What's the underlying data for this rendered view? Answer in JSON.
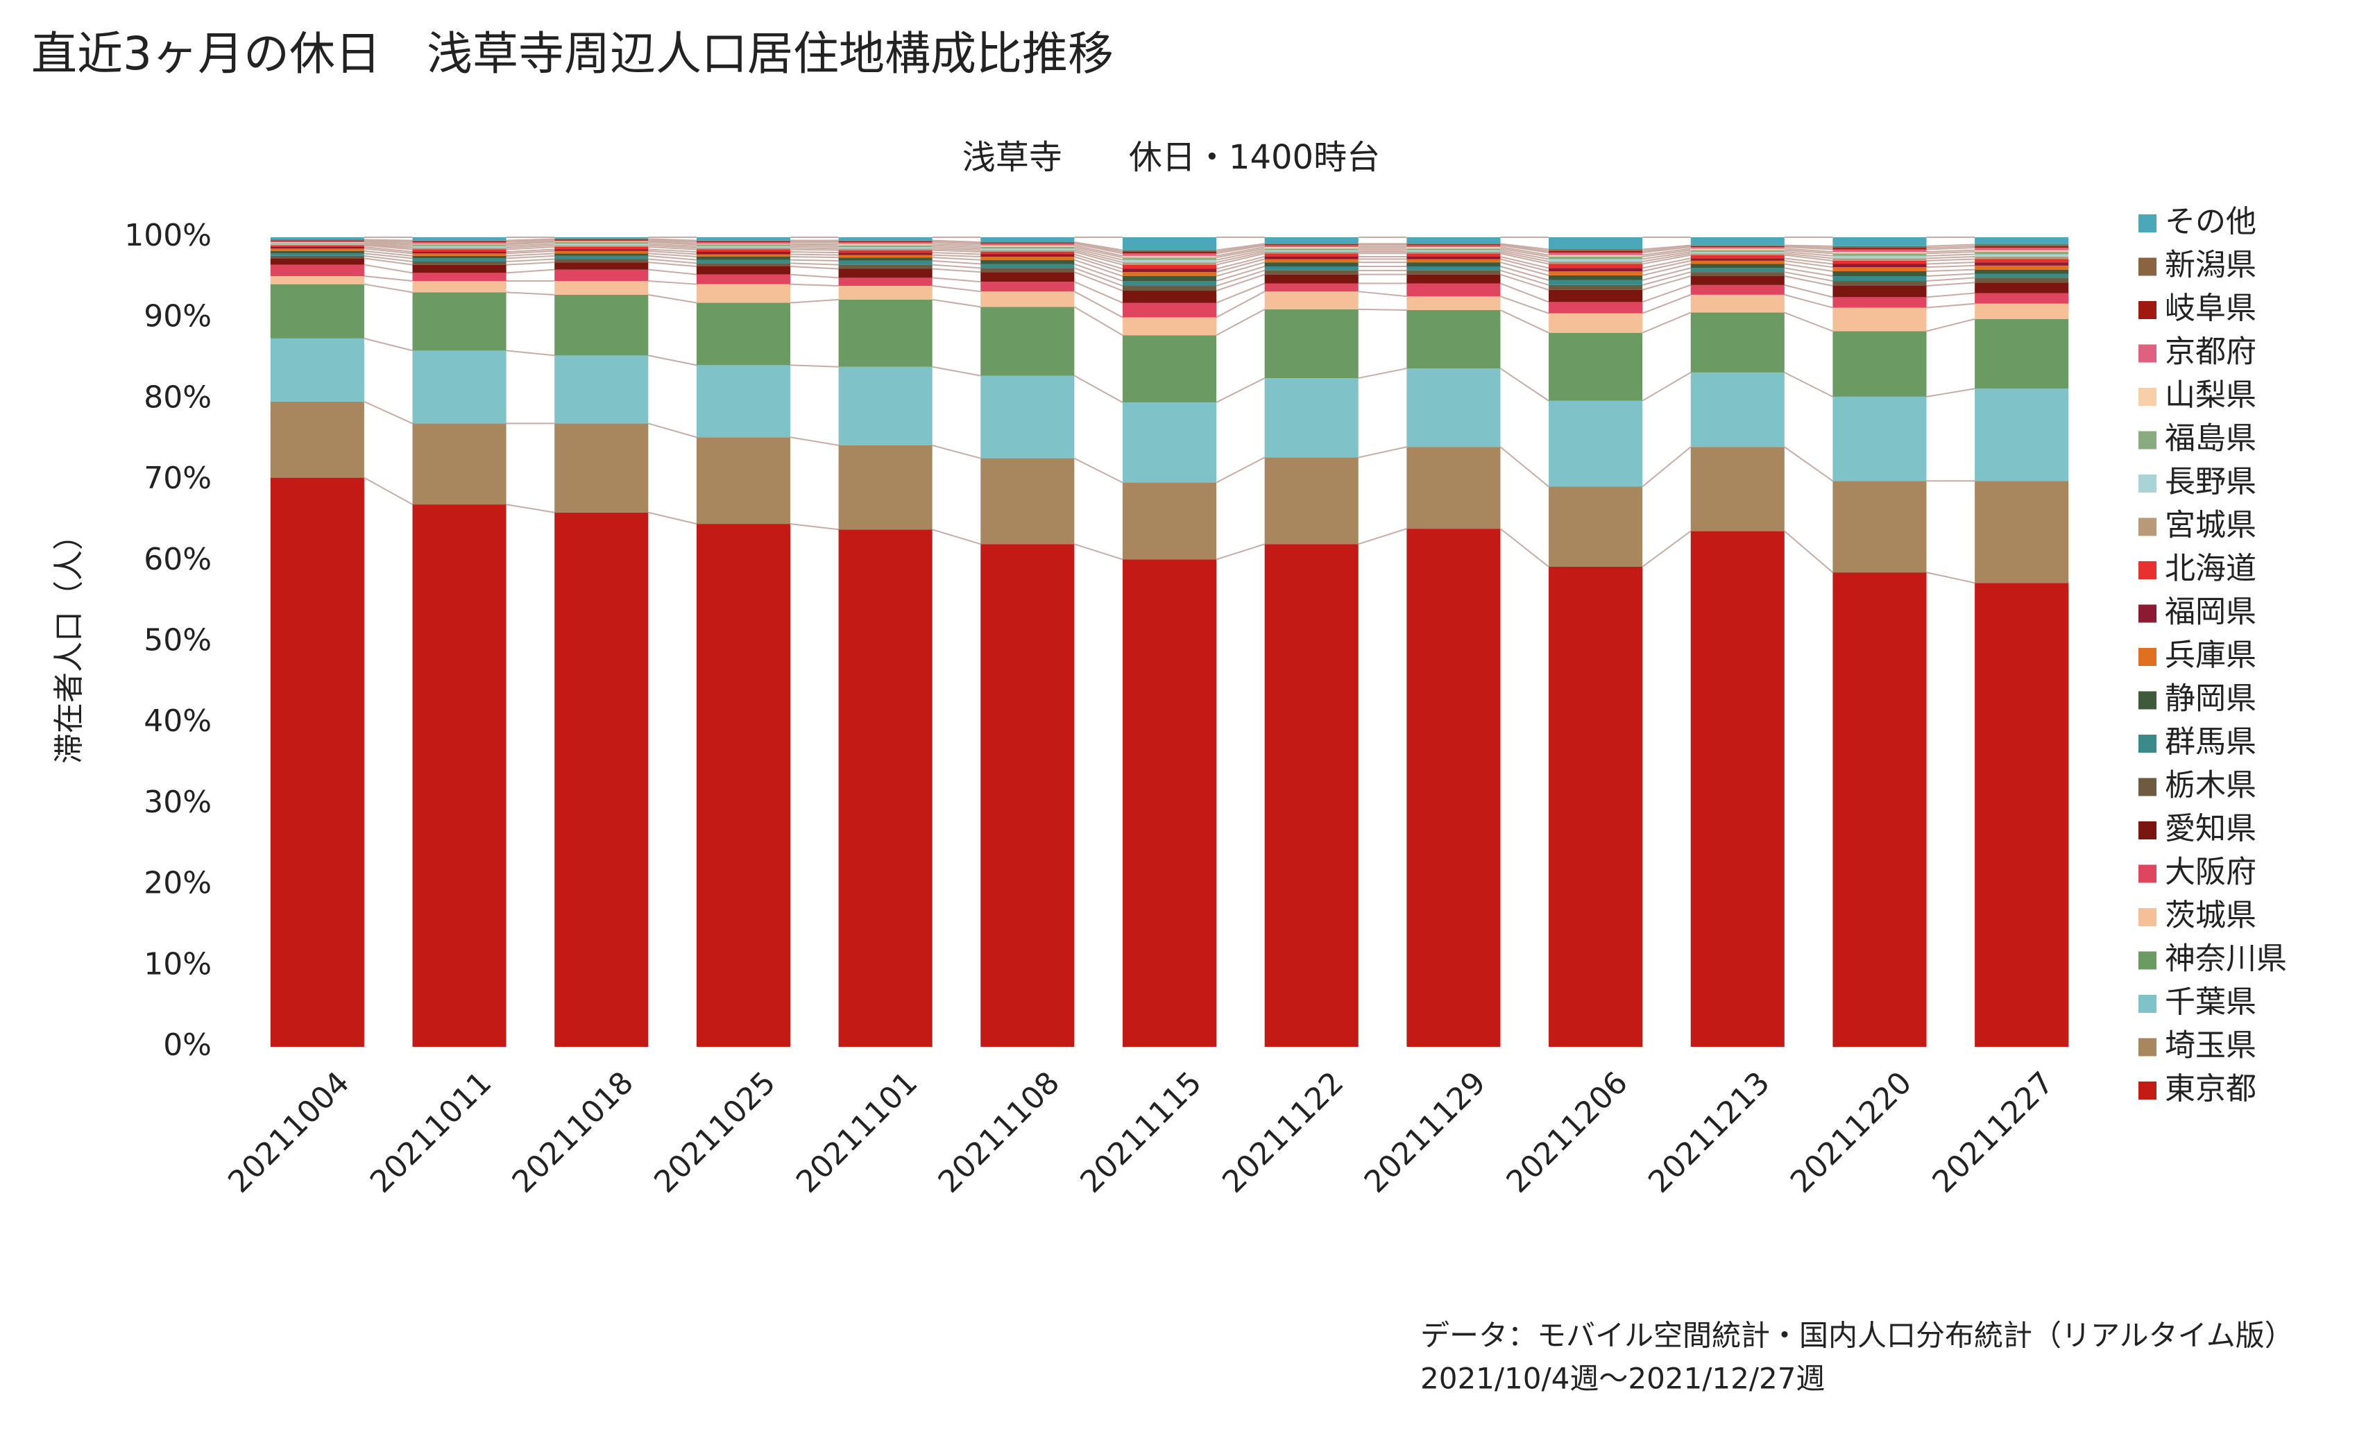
{
  "chart_data": {
    "type": "stacked_bar",
    "title": "直近3ヶ月の休日　浅草寺周辺人口居住地構成比推移",
    "subtitle": "浅草寺　　休日・1400時台",
    "y_label": "滞在者人口（人）",
    "source": [
      "データ：モバイル空間統計・国内人口分布統計（リアルタイム版）",
      "2021/10/4週～2021/12/27週"
    ],
    "categories": [
      "20211004",
      "20211011",
      "20211018",
      "20211025",
      "20211101",
      "20211108",
      "20211115",
      "20211122",
      "20211129",
      "20211206",
      "20211213",
      "20211220",
      "20211227"
    ],
    "ylim": [
      0,
      100
    ],
    "yticks": [
      {
        "value": 0,
        "label": "0%"
      },
      {
        "value": 10,
        "label": "10%"
      },
      {
        "value": 20,
        "label": "20%"
      },
      {
        "value": 30,
        "label": "30%"
      },
      {
        "value": 40,
        "label": "40%"
      },
      {
        "value": 50,
        "label": "50%"
      },
      {
        "value": 60,
        "label": "60%"
      },
      {
        "value": 70,
        "label": "70%"
      },
      {
        "value": 80,
        "label": "80%"
      },
      {
        "value": 90,
        "label": "90%"
      },
      {
        "value": 100,
        "label": "100%"
      }
    ],
    "legend": "right",
    "series": [
      {
        "name": "東京都",
        "color": "#c41a16",
        "values": [
          70.3,
          67.0,
          66.0,
          64.6,
          63.9,
          62.1,
          60.2,
          62.1,
          64.0,
          59.3,
          63.7,
          58.6,
          57.3
        ]
      },
      {
        "name": "埼玉県",
        "color": "#a8875f",
        "values": [
          9.4,
          10.0,
          11.0,
          10.7,
          10.4,
          10.6,
          9.5,
          10.7,
          10.1,
          9.9,
          10.4,
          11.3,
          12.6
        ]
      },
      {
        "name": "千葉県",
        "color": "#7fc2c8",
        "values": [
          7.8,
          9.0,
          8.4,
          8.9,
          9.7,
          10.2,
          9.9,
          9.8,
          9.7,
          10.6,
          9.2,
          10.4,
          11.4
        ]
      },
      {
        "name": "神奈川県",
        "color": "#6b9a63",
        "values": [
          6.7,
          7.2,
          7.5,
          7.7,
          8.3,
          8.5,
          8.3,
          8.5,
          7.2,
          8.4,
          7.4,
          8.1,
          8.6
        ]
      },
      {
        "name": "茨城県",
        "color": "#f5c098",
        "values": [
          1.0,
          1.4,
          1.7,
          2.3,
          1.7,
          1.9,
          2.2,
          2.2,
          1.7,
          2.4,
          2.2,
          2.9,
          1.9
        ]
      },
      {
        "name": "大阪府",
        "color": "#e04560",
        "values": [
          1.4,
          1.0,
          1.4,
          1.2,
          1.0,
          1.2,
          1.8,
          1.0,
          1.6,
          1.4,
          1.2,
          1.3,
          1.3
        ]
      },
      {
        "name": "愛知県",
        "color": "#7a1510",
        "values": [
          0.8,
          1.0,
          0.9,
          1.0,
          1.1,
          1.2,
          1.5,
          1.1,
          1.1,
          1.5,
          1.1,
          1.4,
          1.3
        ]
      },
      {
        "name": "栃木県",
        "color": "#6e5a40",
        "values": [
          0.3,
          0.4,
          0.4,
          0.4,
          0.5,
          0.5,
          0.6,
          0.5,
          0.5,
          0.6,
          0.5,
          0.6,
          0.6
        ]
      },
      {
        "name": "群馬県",
        "color": "#3a8a8a",
        "values": [
          0.3,
          0.4,
          0.4,
          0.4,
          0.5,
          0.5,
          0.6,
          0.5,
          0.5,
          0.6,
          0.5,
          0.6,
          0.5
        ]
      },
      {
        "name": "静岡県",
        "color": "#3e5a3a",
        "values": [
          0.3,
          0.3,
          0.3,
          0.4,
          0.4,
          0.5,
          0.6,
          0.5,
          0.5,
          0.6,
          0.5,
          0.6,
          0.5
        ]
      },
      {
        "name": "兵庫県",
        "color": "#e07020",
        "values": [
          0.3,
          0.3,
          0.3,
          0.3,
          0.3,
          0.4,
          0.5,
          0.4,
          0.4,
          0.5,
          0.4,
          0.5,
          0.5
        ]
      },
      {
        "name": "福岡県",
        "color": "#8c1a30",
        "values": [
          0.2,
          0.2,
          0.2,
          0.3,
          0.3,
          0.3,
          0.4,
          0.3,
          0.3,
          0.4,
          0.3,
          0.4,
          0.4
        ]
      },
      {
        "name": "北海道",
        "color": "#e83030",
        "values": [
          0.2,
          0.3,
          0.3,
          0.3,
          0.3,
          0.3,
          0.5,
          0.4,
          0.4,
          0.5,
          0.4,
          0.4,
          0.4
        ]
      },
      {
        "name": "宮城県",
        "color": "#b89a78",
        "values": [
          0.1,
          0.2,
          0.2,
          0.2,
          0.2,
          0.2,
          0.3,
          0.2,
          0.2,
          0.3,
          0.2,
          0.3,
          0.3
        ]
      },
      {
        "name": "長野県",
        "color": "#a8d4d8",
        "values": [
          0.1,
          0.2,
          0.2,
          0.2,
          0.2,
          0.2,
          0.3,
          0.2,
          0.2,
          0.3,
          0.2,
          0.3,
          0.3
        ]
      },
      {
        "name": "福島県",
        "color": "#8aab80",
        "values": [
          0.1,
          0.2,
          0.2,
          0.2,
          0.2,
          0.2,
          0.3,
          0.2,
          0.2,
          0.3,
          0.2,
          0.3,
          0.3
        ]
      },
      {
        "name": "山梨県",
        "color": "#f8cfa8",
        "values": [
          0.1,
          0.1,
          0.1,
          0.1,
          0.2,
          0.2,
          0.2,
          0.2,
          0.2,
          0.2,
          0.2,
          0.2,
          0.2
        ]
      },
      {
        "name": "京都府",
        "color": "#e06080",
        "values": [
          0.1,
          0.2,
          0.1,
          0.2,
          0.2,
          0.2,
          0.3,
          0.2,
          0.2,
          0.3,
          0.2,
          0.3,
          0.3
        ]
      },
      {
        "name": "岐阜県",
        "color": "#a01810",
        "values": [
          0.1,
          0.1,
          0.1,
          0.1,
          0.1,
          0.1,
          0.2,
          0.1,
          0.1,
          0.2,
          0.1,
          0.2,
          0.2
        ]
      },
      {
        "name": "新潟県",
        "color": "#8a6440",
        "values": [
          0.1,
          0.1,
          0.1,
          0.1,
          0.1,
          0.1,
          0.2,
          0.1,
          0.1,
          0.2,
          0.1,
          0.2,
          0.2
        ]
      },
      {
        "name": "その他",
        "color": "#4aa8b8",
        "values": [
          0.3,
          0.4,
          0.2,
          0.4,
          0.4,
          0.6,
          1.6,
          0.8,
          0.8,
          1.5,
          1.0,
          1.1,
          0.9
        ]
      }
    ]
  }
}
